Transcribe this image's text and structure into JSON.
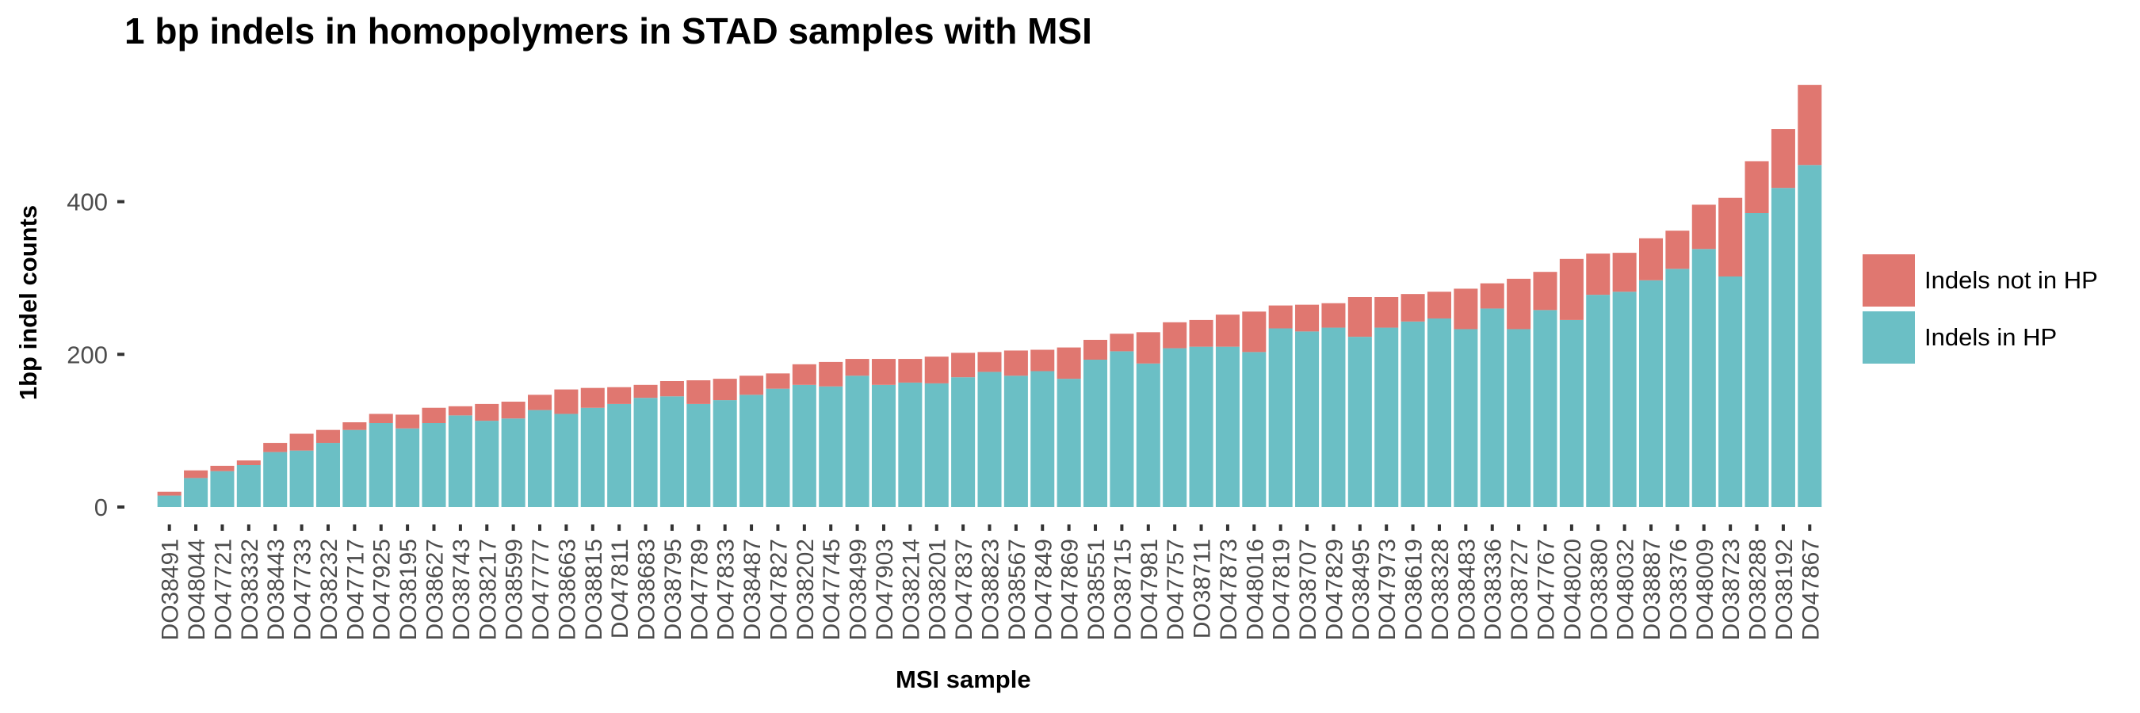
{
  "chart_data": {
    "type": "bar",
    "stacked": true,
    "title": "1 bp indels in homopolymers in STAD samples with MSI",
    "xlabel": "MSI sample",
    "ylabel": "1bp indel counts",
    "ylim": [
      0,
      550
    ],
    "yticks": [
      0,
      200,
      400
    ],
    "grid": false,
    "legend_position": "right",
    "categories": [
      "DO38491",
      "DO48044",
      "DO47721",
      "DO38332",
      "DO38443",
      "DO47733",
      "DO38232",
      "DO47717",
      "DO47925",
      "DO38195",
      "DO38627",
      "DO38743",
      "DO38217",
      "DO38599",
      "DO47777",
      "DO38663",
      "DO38815",
      "DO47811",
      "DO38683",
      "DO38795",
      "DO47789",
      "DO47833",
      "DO38487",
      "DO47827",
      "DO38202",
      "DO47745",
      "DO38499",
      "DO47903",
      "DO38214",
      "DO38201",
      "DO47837",
      "DO38823",
      "DO38567",
      "DO47849",
      "DO47869",
      "DO38551",
      "DO38715",
      "DO47981",
      "DO47757",
      "DO38711",
      "DO47873",
      "DO48016",
      "DO47819",
      "DO38707",
      "DO47829",
      "DO38495",
      "DO47973",
      "DO38619",
      "DO38328",
      "DO38483",
      "DO38336",
      "DO38727",
      "DO47767",
      "DO48020",
      "DO38380",
      "DO48032",
      "DO38887",
      "DO38376",
      "DO48009",
      "DO38723",
      "DO38288",
      "DO38192",
      "DO47867"
    ],
    "series": [
      {
        "name": "Indels in HP",
        "color": "#6BBFC5",
        "values": [
          15,
          38,
          47,
          55,
          72,
          74,
          84,
          101,
          110,
          103,
          110,
          120,
          113,
          116,
          127,
          122,
          130,
          135,
          143,
          145,
          135,
          140,
          147,
          155,
          160,
          158,
          172,
          160,
          163,
          162,
          170,
          177,
          172,
          178,
          168,
          193,
          204,
          188,
          208,
          210,
          210,
          203,
          234,
          230,
          235,
          223,
          235,
          243,
          247,
          233,
          260,
          233,
          258,
          245,
          278,
          282,
          297,
          312,
          338,
          302,
          385,
          418,
          448
        ]
      },
      {
        "name": "Indels not in HP",
        "color": "#E07770",
        "values": [
          5,
          10,
          7,
          6,
          12,
          22,
          17,
          10,
          12,
          18,
          20,
          12,
          22,
          22,
          20,
          32,
          26,
          22,
          17,
          20,
          31,
          28,
          25,
          20,
          27,
          32,
          22,
          34,
          31,
          35,
          32,
          26,
          33,
          28,
          41,
          26,
          23,
          41,
          34,
          35,
          42,
          53,
          30,
          35,
          32,
          52,
          40,
          36,
          35,
          53,
          33,
          66,
          50,
          80,
          54,
          51,
          55,
          50,
          58,
          103,
          68,
          77,
          105
        ]
      }
    ]
  }
}
